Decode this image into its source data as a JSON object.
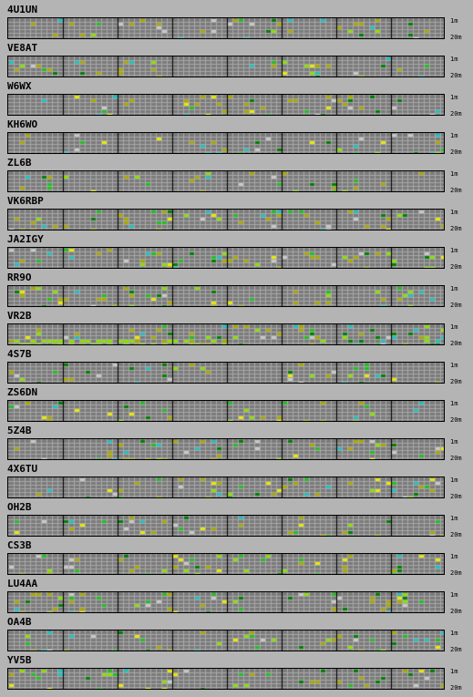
{
  "band_labels": {
    "top": "1m",
    "bottom": "20m"
  },
  "colors": {
    "background": "#b4b4b4",
    "grid_fill": "#7a7a7a",
    "grid_line": "#a8a8a8",
    "hour_line": "#000000",
    "signal_olive": "#a8a800",
    "signal_green": "#20c020",
    "signal_bright_green": "#88e000",
    "signal_dark_green": "#008000",
    "signal_cyan": "#20c0c0",
    "signal_yellow": "#e8e800",
    "signal_light": "#c8c8c8"
  },
  "beacons": [
    {
      "call": "4U1UN",
      "density": 0.1
    },
    {
      "call": "VE8AT",
      "density": 0.07
    },
    {
      "call": "W6WX",
      "density": 0.1
    },
    {
      "call": "KH6WO",
      "density": 0.09
    },
    {
      "call": "ZL6B",
      "density": 0.09
    },
    {
      "call": "VK6RBP",
      "density": 0.13
    },
    {
      "call": "JA2IGY",
      "density": 0.11
    },
    {
      "call": "RR9O",
      "density": 0.09
    },
    {
      "call": "VR2B",
      "density": 0.16
    },
    {
      "call": "4S7B",
      "density": 0.09
    },
    {
      "call": "ZS6DN",
      "density": 0.08
    },
    {
      "call": "5Z4B",
      "density": 0.09
    },
    {
      "call": "4X6TU",
      "density": 0.1
    },
    {
      "call": "OH2B",
      "density": 0.09
    },
    {
      "call": "CS3B",
      "density": 0.1
    },
    {
      "call": "LU4AA",
      "density": 0.12
    },
    {
      "call": "OA4B",
      "density": 0.08
    },
    {
      "call": "YV5B",
      "density": 0.09
    }
  ]
}
